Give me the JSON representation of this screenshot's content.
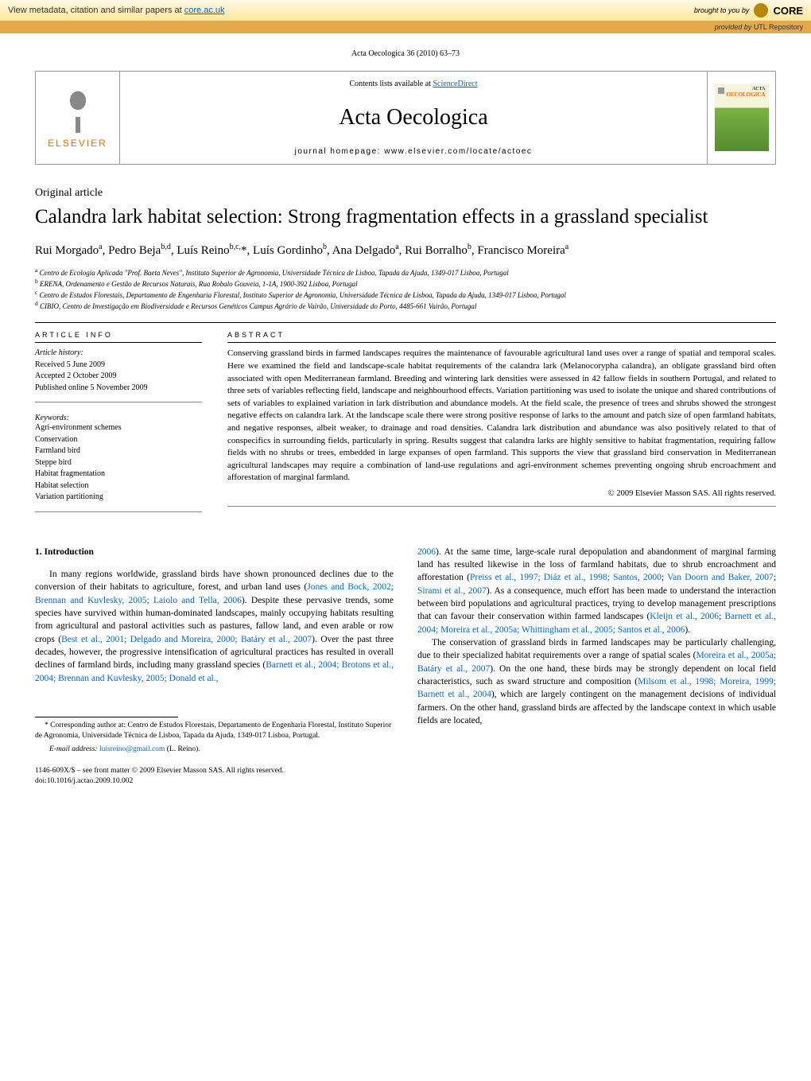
{
  "core_banner": {
    "left_prefix": "View metadata, citation and similar papers at ",
    "left_link": "core.ac.uk",
    "right_prefix": "brought to you by ",
    "right_brand": "CORE"
  },
  "provided_by": {
    "prefix": "provided by ",
    "source": "UTL Repository"
  },
  "citation": "Acta Oecologica 36 (2010) 63–73",
  "header": {
    "elsevier": "ELSEVIER",
    "contents_prefix": "Contents lists available at ",
    "contents_link": "ScienceDirect",
    "journal": "Acta Oecologica",
    "homepage_prefix": "journal homepage: ",
    "homepage_url": "www.elsevier.com/locate/actoec",
    "cover_acta": "ACTA",
    "cover_oeco": "OECOLOGICA"
  },
  "article_type": "Original article",
  "title": "Calandra lark habitat selection: Strong fragmentation effects in a grassland specialist",
  "authors_html": "Rui Morgado ᵃ, Pedro Beja ᵇ·ᵈ, Luís Reino ᵇ·ᶜ·*, Luís Gordinho ᵇ, Ana Delgado ᵃ, Rui Borralho ᵇ, Francisco Moreira ᵃ",
  "affiliations": {
    "a": "Centro de Ecologia Aplicada \"Prof. Baeta Neves\", Instituto Superior de Agronomia, Universidade Técnica de Lisboa, Tapada da Ajuda, 1349-017 Lisboa, Portugal",
    "b": "ERENA, Ordenamento e Gestão de Recursos Naturais, Rua Robalo Gouveia, 1-1A, 1900-392 Lisboa, Portugal",
    "c": "Centro de Estudos Florestais, Departamento de Engenharia Florestal, Instituto Superior de Agronomia, Universidade Técnica de Lisboa, Tapada da Ajuda, 1349-017 Lisboa, Portugal",
    "d": "CIBIO, Centro de Investigação em Biodiversidade e Recursos Genéticos Campus Agrário de Vairão, Universidade do Porto, 4485-661 Vairão, Portugal"
  },
  "info": {
    "label": "ARTICLE INFO",
    "history_label": "Article history:",
    "received": "Received 5 June 2009",
    "accepted": "Accepted 2 October 2009",
    "published": "Published online 5 November 2009",
    "keywords_label": "Keywords:",
    "keywords": [
      "Agri-environment schemes",
      "Conservation",
      "Farmland bird",
      "Steppe bird",
      "Habitat fragmentation",
      "Habitat selection",
      "Variation partitioning"
    ]
  },
  "abstract": {
    "label": "ABSTRACT",
    "text": "Conserving grassland birds in farmed landscapes requires the maintenance of favourable agricultural land uses over a range of spatial and temporal scales. Here we examined the field and landscape-scale habitat requirements of the calandra lark (Melanocorypha calandra), an obligate grassland bird often associated with open Mediterranean farmland. Breeding and wintering lark densities were assessed in 42 fallow fields in southern Portugal, and related to three sets of variables reflecting field, landscape and neighbourhood effects. Variation partitioning was used to isolate the unique and shared contributions of sets of variables to explained variation in lark distribution and abundance models. At the field scale, the presence of trees and shrubs showed the strongest negative effects on calandra lark. At the landscape scale there were strong positive response of larks to the amount and patch size of open farmland habitats, and negative responses, albeit weaker, to drainage and road densities. Calandra lark distribution and abundance was also positively related to that of conspecifics in surrounding fields, particularly in spring. Results suggest that calandra larks are highly sensitive to habitat fragmentation, requiring fallow fields with no shrubs or trees, embedded in large expanses of open farmland. This supports the view that grassland bird conservation in Mediterranean agricultural landscapes may require a combination of land-use regulations and agri-environment schemes preventing ongoing shrub encroachment and afforestation of marginal farmland.",
    "copyright": "© 2009 Elsevier Masson SAS. All rights reserved."
  },
  "body": {
    "intro_head": "1.  Introduction",
    "left_p1_a": "In many regions worldwide, grassland birds have shown pronounced declines due to the conversion of their habitats to agriculture, forest, and urban land uses (",
    "left_link1": "Jones and Bock, 2002; Brennan and Kuvlesky, 2005; Laiolo and Tella, 2006",
    "left_p1_b": "). Despite these pervasive trends, some species have survived within human-dominated landscapes, mainly occupying habitats resulting from agricultural and pastoral activities such as pastures, fallow land, and even arable or row crops (",
    "left_link2": "Best et al., 2001; Delgado and Moreira, 2000; Batáry et al., 2007",
    "left_p1_c": "). Over the past three decades, however, the progressive intensification of agricultural practices has resulted in overall declines of farmland birds, including many grassland species (",
    "left_link3": "Barnett et al., 2004; Brotons et al., 2004; Brennan and Kuvlesky, 2005; Donald et al.,",
    "right_link1": "2006",
    "right_p1_a": "). At the same time, large-scale rural depopulation and abandonment of marginal farming land has resulted likewise in the loss of farmland habitats, due to shrub encroachment and afforestation (",
    "right_link2": "Preiss et al., 1997; Diáz et al., 1998; Santos, 2000",
    "right_p1_b": "; ",
    "right_link3": "Van Doorn and Baker, 2007",
    "right_p1_c": "; ",
    "right_link4": "Sirami et al., 2007",
    "right_p1_d": "). As a consequence, much effort has been made to understand the interaction between bird populations and agricultural practices, trying to develop management prescriptions that can favour their conservation within farmed landscapes (",
    "right_link5": "Kleijn et al., 2006",
    "right_p1_e": "; ",
    "right_link6": "Barnett et al., 2004; Moreira et al., 2005a; Whittingham et al., 2005; Santos et al., 2006",
    "right_p1_f": ").",
    "right_p2_a": "The conservation of grassland birds in farmed landscapes may be particularly challenging, due to their specialized habitat requirements over a range of spatial scales (",
    "right_link7": "Moreira et al., 2005a; Batáry et al., 2007",
    "right_p2_b": "). On the one hand, these birds may be strongly dependent on local field characteristics, such as sward structure and composition (",
    "right_link8": "Milsom et al., 1998; Moreira, 1999; Barnett et al., 2004",
    "right_p2_c": "), which are largely contingent on the management decisions of individual farmers. On the other hand, grassland birds are affected by the landscape context in which usable fields are located,"
  },
  "footnote": {
    "corr_text": "* Corresponding author at: Centro de Estudos Florestais, Departamento de Engenharia Florestal, Instituto Superior de Agronomia, Universidade Técnica de Lisboa, Tapada da Ajuda, 1349-017 Lisboa, Portugal.",
    "email_label": "E-mail address: ",
    "email": "luisreino@gmail.com",
    "email_suffix": " (L. Reino)."
  },
  "footer": {
    "issn": "1146-609X/$ – see front matter © 2009 Elsevier Masson SAS. All rights reserved.",
    "doi": "doi:10.1016/j.actao.2009.10.002"
  },
  "colors": {
    "link": "#0066cc",
    "elsevier": "#ff6600",
    "banner_bg_top": "#fff9e6",
    "banner_bg_bottom": "#ffe89a",
    "provided_bg": "#e5a84b"
  }
}
